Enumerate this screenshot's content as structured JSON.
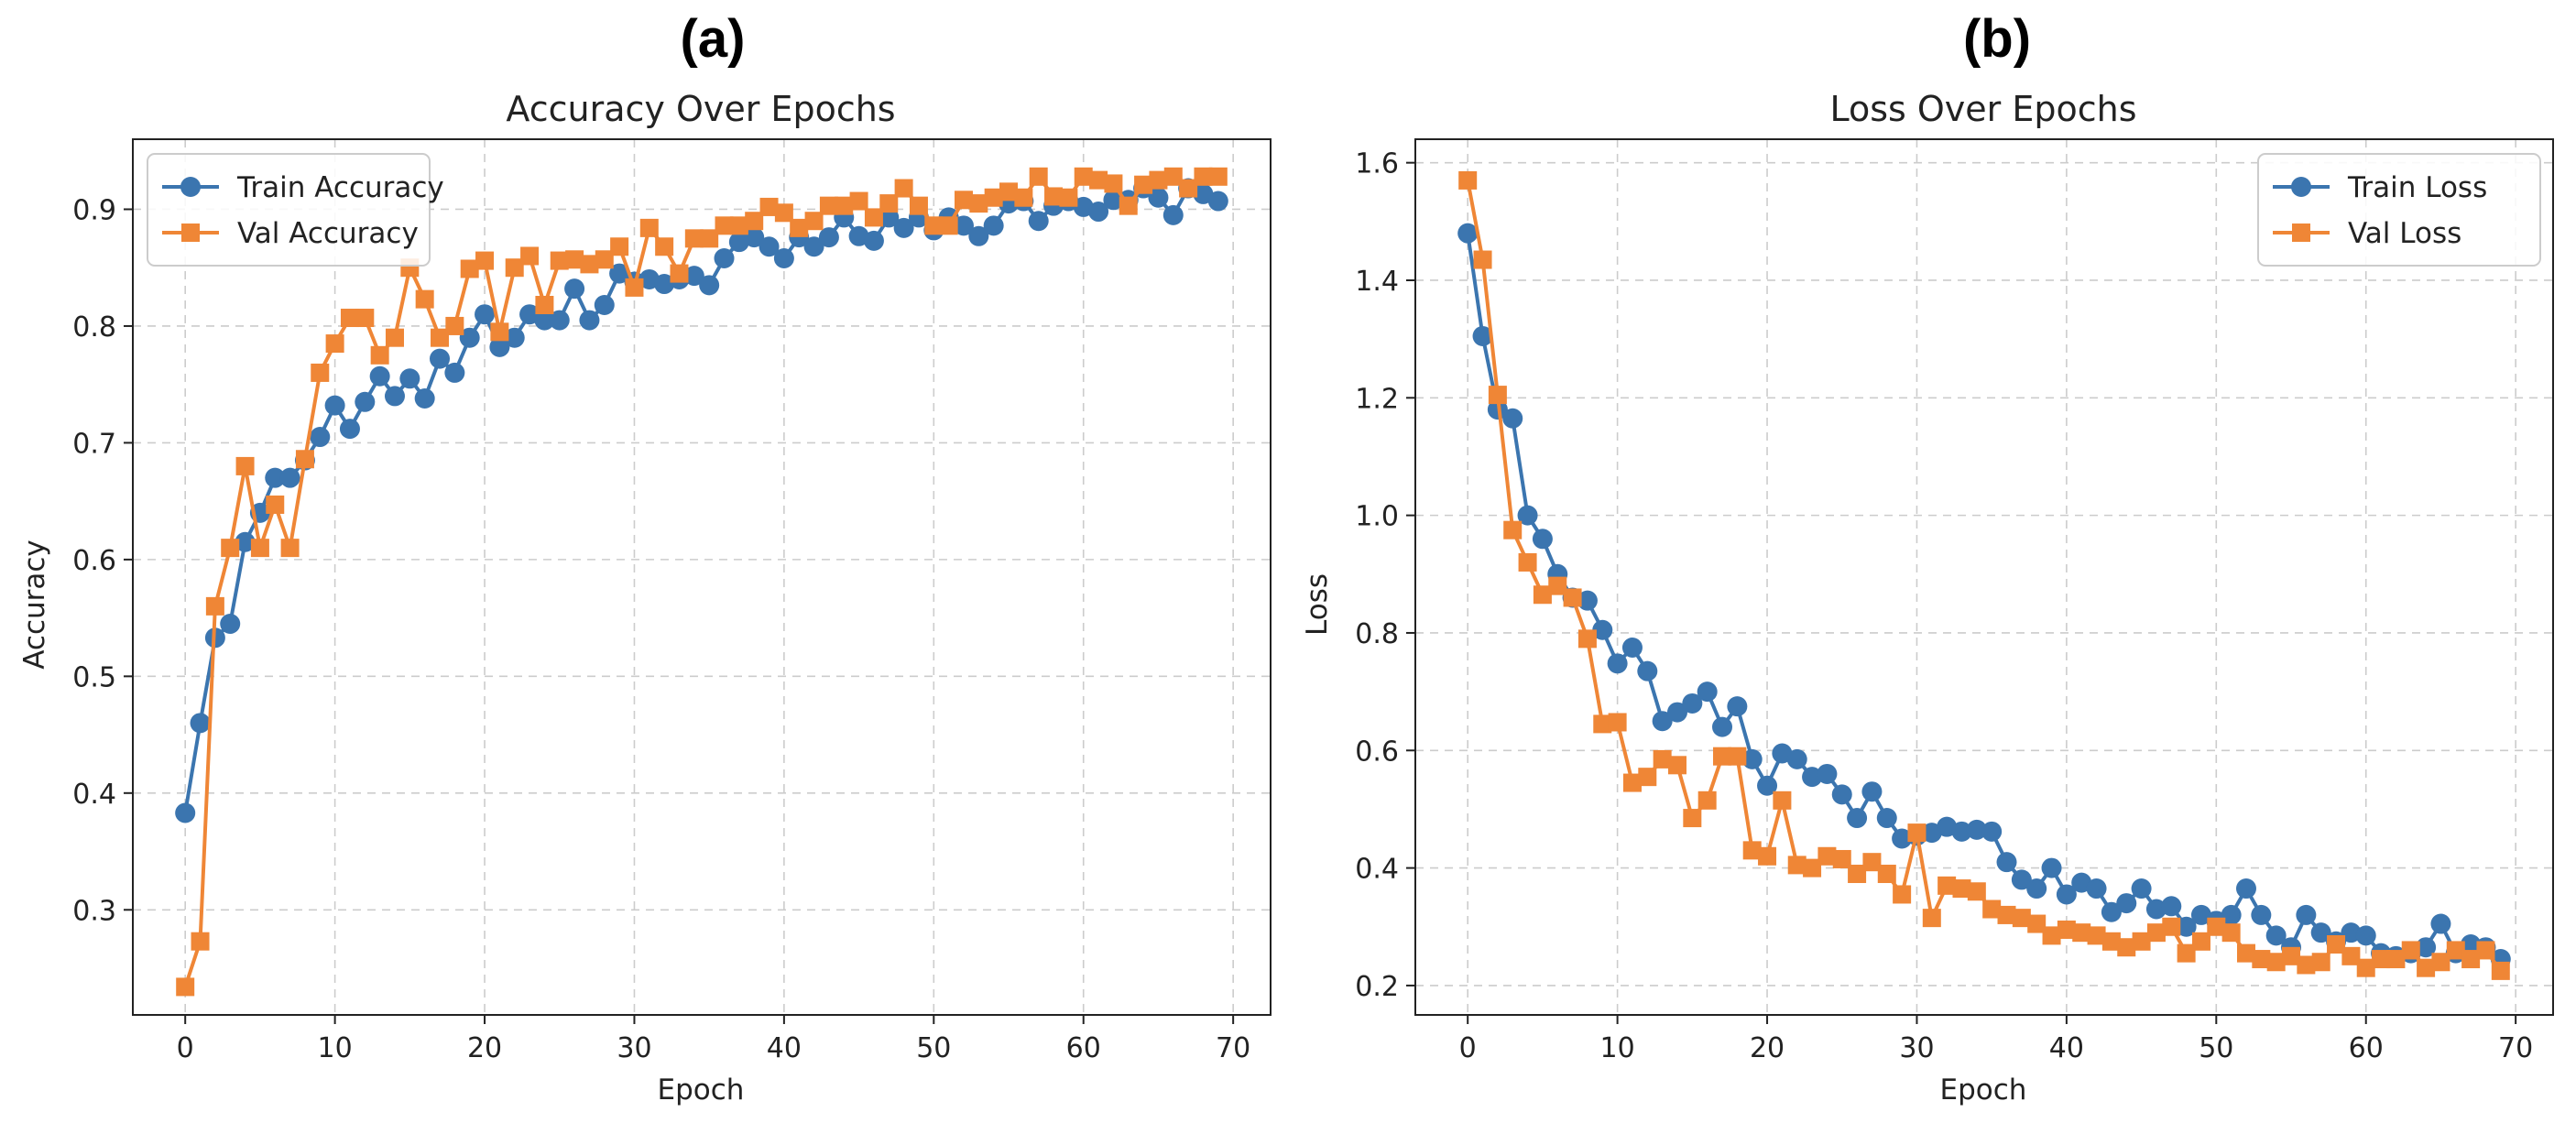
{
  "panel_labels": [
    "(a)",
    "(b)"
  ],
  "chart_data": [
    {
      "type": "line",
      "title": "Accuracy Over Epochs",
      "xlabel": "Epoch",
      "ylabel": "Accuracy",
      "xlim": [
        -3.5,
        72.5
      ],
      "ylim": [
        0.21,
        0.96
      ],
      "xticks": [
        0,
        10,
        20,
        30,
        40,
        50,
        60,
        70
      ],
      "yticks": [
        0.3,
        0.4,
        0.5,
        0.6,
        0.7,
        0.8,
        0.9
      ],
      "grid": true,
      "legend_position": "top-left",
      "x": [
        0,
        1,
        2,
        3,
        4,
        5,
        6,
        7,
        8,
        9,
        10,
        11,
        12,
        13,
        14,
        15,
        16,
        17,
        18,
        19,
        20,
        21,
        22,
        23,
        24,
        25,
        26,
        27,
        28,
        29,
        30,
        31,
        32,
        33,
        34,
        35,
        36,
        37,
        38,
        39,
        40,
        41,
        42,
        43,
        44,
        45,
        46,
        47,
        48,
        49,
        50,
        51,
        52,
        53,
        54,
        55,
        56,
        57,
        58,
        59,
        60,
        61,
        62,
        63,
        64,
        65,
        66,
        67,
        68,
        69
      ],
      "series": [
        {
          "name": "Train Accuracy",
          "color": "#3b75af",
          "marker": "circle",
          "values": [
            0.383,
            0.46,
            0.533,
            0.545,
            0.615,
            0.64,
            0.67,
            0.67,
            0.685,
            0.705,
            0.732,
            0.712,
            0.735,
            0.757,
            0.74,
            0.755,
            0.738,
            0.772,
            0.76,
            0.79,
            0.81,
            0.782,
            0.79,
            0.81,
            0.805,
            0.805,
            0.832,
            0.805,
            0.818,
            0.845,
            0.838,
            0.84,
            0.836,
            0.84,
            0.843,
            0.835,
            0.858,
            0.872,
            0.876,
            0.868,
            0.858,
            0.876,
            0.868,
            0.876,
            0.893,
            0.877,
            0.873,
            0.893,
            0.884,
            0.893,
            0.882,
            0.893,
            0.886,
            0.877,
            0.886,
            0.905,
            0.907,
            0.89,
            0.903,
            0.907,
            0.902,
            0.898,
            0.908,
            0.908,
            0.918,
            0.91,
            0.895,
            0.918,
            0.913,
            0.907
          ]
        },
        {
          "name": "Val Accuracy",
          "color": "#ef8636",
          "marker": "square",
          "values": [
            0.234,
            0.273,
            0.56,
            0.61,
            0.68,
            0.61,
            0.647,
            0.61,
            0.686,
            0.76,
            0.785,
            0.807,
            0.807,
            0.775,
            0.79,
            0.85,
            0.823,
            0.79,
            0.8,
            0.849,
            0.856,
            0.795,
            0.85,
            0.86,
            0.818,
            0.856,
            0.857,
            0.853,
            0.857,
            0.868,
            0.833,
            0.884,
            0.868,
            0.845,
            0.875,
            0.875,
            0.886,
            0.886,
            0.89,
            0.902,
            0.897,
            0.884,
            0.89,
            0.903,
            0.903,
            0.907,
            0.893,
            0.905,
            0.918,
            0.903,
            0.886,
            0.886,
            0.908,
            0.905,
            0.91,
            0.915,
            0.91,
            0.928,
            0.911,
            0.91,
            0.928,
            0.925,
            0.922,
            0.903,
            0.921,
            0.925,
            0.928,
            0.918,
            0.928,
            0.928
          ]
        }
      ]
    },
    {
      "type": "line",
      "title": "Loss Over Epochs",
      "xlabel": "Epoch",
      "ylabel": "Loss",
      "xlim": [
        -3.5,
        72.5
      ],
      "ylim": [
        0.15,
        1.64
      ],
      "xticks": [
        0,
        10,
        20,
        30,
        40,
        50,
        60,
        70
      ],
      "yticks": [
        0.2,
        0.4,
        0.6,
        0.8,
        1.0,
        1.2,
        1.4,
        1.6
      ],
      "grid": true,
      "legend_position": "top-right",
      "x": [
        0,
        1,
        2,
        3,
        4,
        5,
        6,
        7,
        8,
        9,
        10,
        11,
        12,
        13,
        14,
        15,
        16,
        17,
        18,
        19,
        20,
        21,
        22,
        23,
        24,
        25,
        26,
        27,
        28,
        29,
        30,
        31,
        32,
        33,
        34,
        35,
        36,
        37,
        38,
        39,
        40,
        41,
        42,
        43,
        44,
        45,
        46,
        47,
        48,
        49,
        50,
        51,
        52,
        53,
        54,
        55,
        56,
        57,
        58,
        59,
        60,
        61,
        62,
        63,
        64,
        65,
        66,
        67,
        68,
        69
      ],
      "series": [
        {
          "name": "Train Loss",
          "color": "#3b75af",
          "marker": "circle",
          "values": [
            1.48,
            1.305,
            1.18,
            1.165,
            1.0,
            0.96,
            0.9,
            0.86,
            0.855,
            0.805,
            0.748,
            0.775,
            0.735,
            0.65,
            0.665,
            0.68,
            0.7,
            0.64,
            0.675,
            0.585,
            0.54,
            0.595,
            0.585,
            0.555,
            0.56,
            0.525,
            0.485,
            0.53,
            0.485,
            0.45,
            0.455,
            0.46,
            0.47,
            0.462,
            0.465,
            0.462,
            0.41,
            0.38,
            0.365,
            0.4,
            0.355,
            0.375,
            0.365,
            0.325,
            0.34,
            0.365,
            0.33,
            0.335,
            0.3,
            0.32,
            0.31,
            0.32,
            0.365,
            0.32,
            0.285,
            0.265,
            0.32,
            0.29,
            0.275,
            0.29,
            0.285,
            0.255,
            0.25,
            0.255,
            0.265,
            0.305,
            0.255,
            0.27,
            0.265,
            0.245
          ]
        },
        {
          "name": "Val Loss",
          "color": "#ef8636",
          "marker": "square",
          "values": [
            1.57,
            1.435,
            1.205,
            0.975,
            0.92,
            0.865,
            0.88,
            0.86,
            0.79,
            0.645,
            0.648,
            0.545,
            0.555,
            0.585,
            0.575,
            0.485,
            0.515,
            0.59,
            0.59,
            0.43,
            0.42,
            0.515,
            0.405,
            0.4,
            0.42,
            0.415,
            0.39,
            0.41,
            0.39,
            0.355,
            0.46,
            0.315,
            0.37,
            0.365,
            0.36,
            0.33,
            0.32,
            0.315,
            0.305,
            0.285,
            0.295,
            0.29,
            0.285,
            0.275,
            0.265,
            0.275,
            0.29,
            0.3,
            0.255,
            0.275,
            0.3,
            0.29,
            0.255,
            0.245,
            0.24,
            0.25,
            0.235,
            0.24,
            0.27,
            0.25,
            0.23,
            0.245,
            0.245,
            0.26,
            0.23,
            0.24,
            0.26,
            0.245,
            0.26,
            0.225
          ]
        }
      ]
    }
  ]
}
